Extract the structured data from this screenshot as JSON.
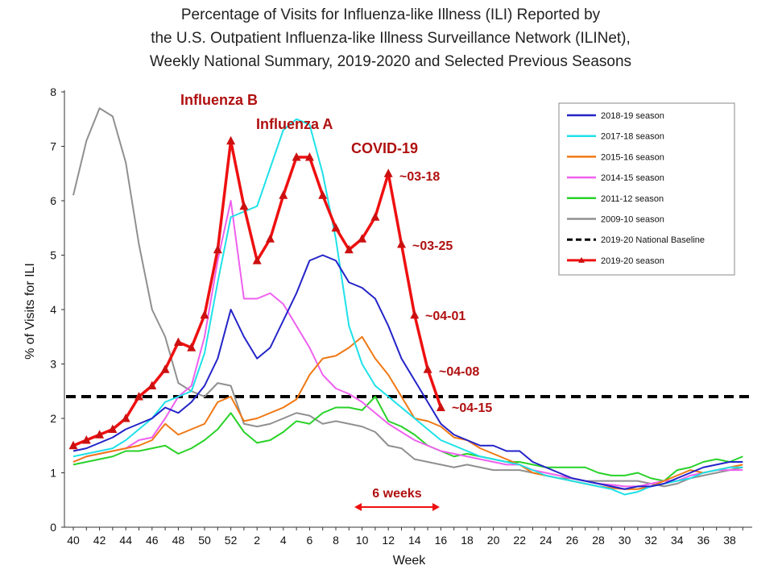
{
  "chart_data": {
    "type": "line",
    "title": [
      "Percentage of Visits for Influenza-like Illness (ILI) Reported by",
      "the U.S. Outpatient Influenza-like Illness Surveillance Network (ILINet),",
      "Weekly National Summary, 2019-2020 and Selected Previous Seasons"
    ],
    "xlabel": "Week",
    "ylabel": "% of Visits for ILI",
    "ylim": [
      0,
      8
    ],
    "yticks": [
      "0",
      "1",
      "2",
      "3",
      "4",
      "5",
      "6",
      "7",
      "8"
    ],
    "week_sequence": [
      40,
      41,
      42,
      43,
      44,
      45,
      46,
      47,
      48,
      49,
      50,
      51,
      52,
      1,
      2,
      3,
      4,
      5,
      6,
      7,
      8,
      9,
      10,
      11,
      12,
      13,
      14,
      15,
      16,
      17,
      18,
      19,
      20,
      21,
      22,
      23,
      24,
      25,
      26,
      27,
      28,
      29,
      30,
      31,
      32,
      33,
      34,
      35,
      36,
      37,
      38,
      39
    ],
    "xtick_labels": [
      "40",
      "42",
      "44",
      "46",
      "48",
      "50",
      "52",
      "2",
      "4",
      "6",
      "8",
      "10",
      "12",
      "14",
      "16",
      "18",
      "20",
      "22",
      "24",
      "26",
      "28",
      "30",
      "32",
      "34",
      "36",
      "38"
    ],
    "baseline": {
      "name": "2019-20 National Baseline",
      "value": 2.4,
      "color": "#000000"
    },
    "series": [
      {
        "name": "2018-19 season",
        "color": "#2323c8",
        "values": [
          1.4,
          1.45,
          1.55,
          1.65,
          1.8,
          1.9,
          2.0,
          2.2,
          2.1,
          2.3,
          2.6,
          3.1,
          4.0,
          3.5,
          3.1,
          3.3,
          3.8,
          4.3,
          4.9,
          5.0,
          4.9,
          4.5,
          4.4,
          4.2,
          3.7,
          3.1,
          2.7,
          2.3,
          1.9,
          1.7,
          1.6,
          1.5,
          1.5,
          1.4,
          1.4,
          1.2,
          1.1,
          1.0,
          0.9,
          0.85,
          0.8,
          0.75,
          0.7,
          0.75,
          0.75,
          0.8,
          0.9,
          1.0,
          1.1,
          1.15,
          1.2,
          1.2
        ]
      },
      {
        "name": "2017-18 season",
        "color": "#1ee1e8",
        "values": [
          1.3,
          1.35,
          1.4,
          1.45,
          1.6,
          1.8,
          2.0,
          2.3,
          2.4,
          2.5,
          3.2,
          4.5,
          5.7,
          5.8,
          5.9,
          6.6,
          7.3,
          7.5,
          7.4,
          6.5,
          5.3,
          3.7,
          3.0,
          2.6,
          2.4,
          2.2,
          2.0,
          1.8,
          1.6,
          1.5,
          1.4,
          1.3,
          1.25,
          1.2,
          1.15,
          1.05,
          0.95,
          0.9,
          0.85,
          0.8,
          0.75,
          0.7,
          0.6,
          0.65,
          0.75,
          0.8,
          0.85,
          0.9,
          1.0,
          1.05,
          1.1,
          1.1
        ]
      },
      {
        "name": "2015-16 season",
        "color": "#f07814",
        "values": [
          1.2,
          1.3,
          1.35,
          1.4,
          1.45,
          1.5,
          1.6,
          1.9,
          1.7,
          1.8,
          1.9,
          2.3,
          2.4,
          1.95,
          2.0,
          2.1,
          2.2,
          2.35,
          2.8,
          3.1,
          3.15,
          3.3,
          3.5,
          3.1,
          2.8,
          2.4,
          2.0,
          1.95,
          1.85,
          1.65,
          1.6,
          1.45,
          1.35,
          1.25,
          1.15,
          1.0,
          0.95,
          0.9,
          0.85,
          0.8,
          0.75,
          0.72,
          0.7,
          0.7,
          0.75,
          0.85,
          0.95,
          1.05,
          1.0,
          1.05,
          1.1,
          1.15
        ]
      },
      {
        "name": "2014-15 season",
        "color": "#ee60ee",
        "values": [
          1.2,
          1.3,
          1.35,
          1.4,
          1.45,
          1.6,
          1.65,
          2.0,
          2.4,
          2.6,
          3.5,
          4.9,
          6.0,
          4.2,
          4.2,
          4.3,
          4.1,
          3.7,
          3.3,
          2.8,
          2.55,
          2.45,
          2.3,
          2.1,
          1.9,
          1.75,
          1.6,
          1.5,
          1.4,
          1.35,
          1.3,
          1.25,
          1.2,
          1.15,
          1.15,
          1.05,
          1.0,
          0.95,
          0.9,
          0.85,
          0.8,
          0.78,
          0.75,
          0.75,
          0.8,
          0.85,
          0.85,
          0.95,
          1.0,
          1.05,
          1.05,
          1.05
        ]
      },
      {
        "name": "2011-12 season",
        "color": "#28d228",
        "values": [
          1.15,
          1.2,
          1.25,
          1.3,
          1.4,
          1.4,
          1.45,
          1.5,
          1.35,
          1.45,
          1.6,
          1.8,
          2.1,
          1.75,
          1.55,
          1.6,
          1.75,
          1.95,
          1.9,
          2.1,
          2.2,
          2.2,
          2.15,
          2.4,
          1.95,
          1.85,
          1.7,
          1.5,
          1.4,
          1.3,
          1.35,
          1.3,
          1.25,
          1.2,
          1.2,
          1.15,
          1.1,
          1.1,
          1.1,
          1.1,
          1.0,
          0.95,
          0.95,
          1.0,
          0.9,
          0.85,
          1.05,
          1.1,
          1.2,
          1.25,
          1.2,
          1.3
        ]
      },
      {
        "name": "2009-10 season",
        "color": "#909090",
        "values": [
          6.1,
          7.1,
          7.7,
          7.55,
          6.7,
          5.2,
          4.0,
          3.5,
          2.65,
          2.5,
          2.4,
          2.65,
          2.6,
          1.9,
          1.85,
          1.9,
          2.0,
          2.1,
          2.05,
          1.9,
          1.95,
          1.9,
          1.85,
          1.75,
          1.5,
          1.45,
          1.25,
          1.2,
          1.15,
          1.1,
          1.15,
          1.1,
          1.05,
          1.05,
          1.05,
          1.0,
          0.95,
          0.9,
          0.9,
          0.85,
          0.85,
          0.85,
          0.85,
          0.85,
          0.8,
          0.75,
          0.8,
          0.9,
          0.95,
          1.0,
          1.05,
          1.1
        ]
      },
      {
        "name": "2019-20 season",
        "color": "#ee1010",
        "values": [
          1.5,
          1.6,
          1.7,
          1.8,
          2.0,
          2.4,
          2.6,
          2.9,
          3.4,
          3.3,
          3.9,
          5.1,
          7.1,
          5.9,
          4.9,
          5.3,
          6.1,
          6.8,
          6.8,
          6.1,
          5.5,
          5.1,
          5.3,
          5.7,
          6.5,
          5.2,
          3.9,
          2.9,
          2.2
        ]
      }
    ],
    "annotations": {
      "influenza_b": "Influenza B",
      "influenza_a": "Influenza A",
      "covid": "COVID-19",
      "w0318": "~03-18",
      "w0325": "~03-25",
      "w0401": "~04-01",
      "w0408": "~04-08",
      "w0415": "~04-15",
      "six_weeks": "6 weeks"
    },
    "legend_position": "top-right"
  }
}
